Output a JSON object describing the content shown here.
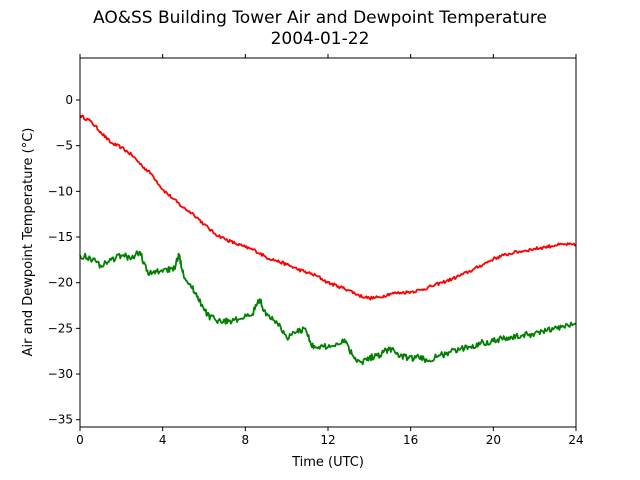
{
  "chart_data": {
    "type": "line",
    "title": "AO&SS Building Tower Air and Dewpoint Temperature",
    "subtitle": "2004-01-22",
    "xlabel": "Time (UTC)",
    "ylabel": "Air and Dewpoint Temperature (°C)",
    "xlim": [
      0,
      24
    ],
    "ylim": [
      -35.8,
      4.6
    ],
    "xticks": [
      0,
      4,
      8,
      12,
      16,
      20,
      24
    ],
    "yticks": [
      0,
      -5,
      -10,
      -15,
      -20,
      -25,
      -30,
      -35
    ],
    "grid": false,
    "legend": "none",
    "series": [
      {
        "color": "#ff0000",
        "x": [
          0,
          0.5,
          1,
          1.5,
          2,
          2.5,
          3,
          3.5,
          4,
          4.5,
          5,
          5.5,
          6,
          6.5,
          7,
          7.5,
          8,
          8.5,
          9,
          9.5,
          10,
          10.5,
          11,
          11.5,
          12,
          12.5,
          13,
          13.5,
          14,
          14.5,
          15,
          15.5,
          16,
          16.5,
          17,
          17.5,
          18,
          18.5,
          19,
          19.5,
          20,
          20.5,
          21,
          21.5,
          22,
          22.5,
          23,
          23.5,
          24
        ],
        "y": [
          -1.7,
          -2.3,
          -3.5,
          -4.7,
          -5.2,
          -6.0,
          -7.2,
          -8.2,
          -9.8,
          -10.8,
          -11.8,
          -12.5,
          -13.6,
          -14.6,
          -15.2,
          -15.7,
          -16.1,
          -16.5,
          -17.2,
          -17.6,
          -18.0,
          -18.5,
          -18.9,
          -19.3,
          -20.0,
          -20.4,
          -20.8,
          -21.4,
          -21.7,
          -21.6,
          -21.2,
          -21.1,
          -21.0,
          -20.8,
          -20.4,
          -20.0,
          -19.6,
          -19.1,
          -18.6,
          -18.0,
          -17.4,
          -17.0,
          -16.7,
          -16.5,
          -16.3,
          -16.1,
          -15.9,
          -15.8,
          -15.9
        ]
      },
      {
        "color": "#008000",
        "x": [
          0,
          0.5,
          1,
          1.5,
          2,
          2.5,
          2.9,
          3.3,
          3.7,
          4.2,
          4.5,
          4.8,
          5,
          5.3,
          5.7,
          6,
          6.3,
          6.8,
          7.2,
          7.7,
          8.3,
          8.7,
          9,
          9.5,
          10,
          10.5,
          10.9,
          11.3,
          11.8,
          12.3,
          12.8,
          13.2,
          13.6,
          14,
          14.4,
          14.8,
          15.1,
          15.5,
          15.9,
          16.4,
          16.9,
          17.4,
          17.9,
          18.4,
          18.9,
          19.4,
          19.9,
          20.4,
          20.9,
          21.4,
          21.9,
          22.4,
          22.9,
          23.4,
          24
        ],
        "y": [
          -17.0,
          -17.3,
          -18.1,
          -17.5,
          -17.0,
          -17.3,
          -16.6,
          -19.1,
          -18.8,
          -18.5,
          -18.7,
          -17.0,
          -19.0,
          -20.2,
          -21.5,
          -23.0,
          -23.8,
          -24.2,
          -24.2,
          -24.0,
          -23.6,
          -21.8,
          -23.6,
          -24.2,
          -26.0,
          -25.4,
          -25.0,
          -27.2,
          -27.0,
          -26.9,
          -26.2,
          -28.0,
          -28.7,
          -28.2,
          -28.0,
          -27.4,
          -27.3,
          -28.0,
          -28.3,
          -28.2,
          -28.5,
          -28.0,
          -27.6,
          -27.3,
          -27.0,
          -26.6,
          -26.4,
          -26.1,
          -26.0,
          -25.8,
          -25.6,
          -25.3,
          -25.1,
          -24.8,
          -24.5
        ]
      }
    ]
  }
}
